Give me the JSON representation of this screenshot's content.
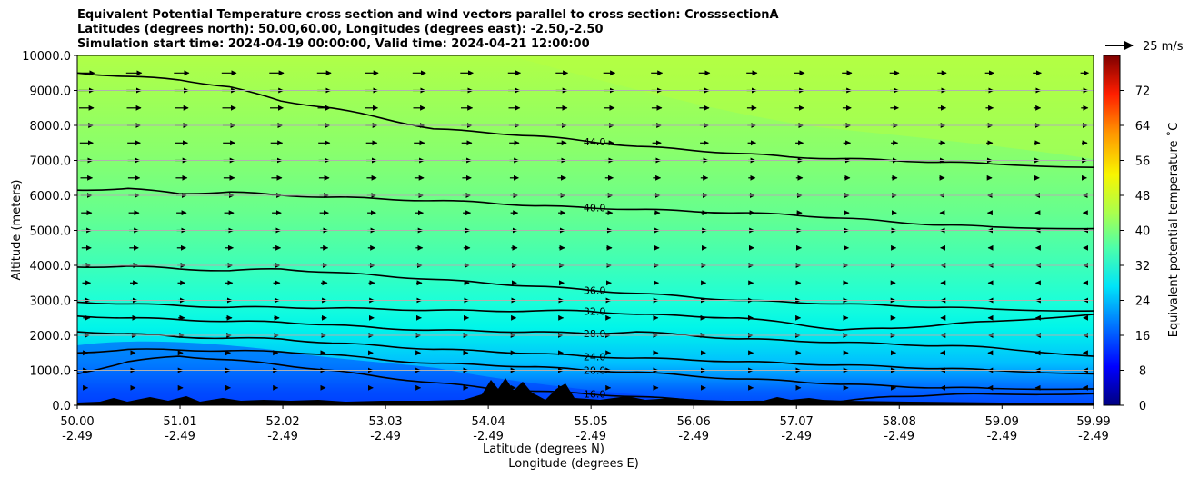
{
  "titles": [
    "Equivalent Potential Temperature cross section and wind vectors parallel to cross section: CrosssectionA",
    "Latitudes (degrees north): 50.00,60.00, Longitudes (degrees east): -2.50,-2.50",
    "Simulation start time: 2024-04-19 00:00:00, Valid time: 2024-04-21 12:00:00"
  ],
  "chart_data": {
    "type": "heatmap",
    "ylabel": "Altitude (meters)",
    "xlabel_lines": [
      "Latitude (degrees N)",
      "Longitude (degrees E)"
    ],
    "ylim": [
      0,
      10000
    ],
    "y_ticks": [
      "0.0",
      "1000.0",
      "2000.0",
      "3000.0",
      "4000.0",
      "5000.0",
      "6000.0",
      "7000.0",
      "8000.0",
      "9000.0",
      "10000.0"
    ],
    "y_tick_values": [
      0,
      1000,
      2000,
      3000,
      4000,
      5000,
      6000,
      7000,
      8000,
      9000,
      10000
    ],
    "x_lat_ticks": [
      "50.00",
      "51.01",
      "52.02",
      "53.03",
      "54.04",
      "55.05",
      "56.06",
      "57.07",
      "58.08",
      "59.09",
      "59.99"
    ],
    "x_lon_ticks": [
      "-2.49",
      "-2.49",
      "-2.49",
      "-2.49",
      "-2.49",
      "-2.49",
      "-2.49",
      "-2.49",
      "-2.49",
      "-2.49",
      "-2.49"
    ],
    "x_tick_values": [
      50.0,
      51.01,
      52.02,
      53.03,
      54.04,
      55.05,
      56.06,
      57.07,
      58.08,
      59.09,
      59.99
    ],
    "xlim": [
      50.0,
      59.99
    ],
    "grid": "horizontal",
    "colorbar": {
      "label": "Equivalent potential temperature ˚C",
      "min": 0,
      "max": 80,
      "ticks": [
        "0",
        "8",
        "16",
        "24",
        "32",
        "40",
        "48",
        "56",
        "64",
        "72"
      ],
      "tick_values": [
        0,
        8,
        16,
        24,
        32,
        40,
        48,
        56,
        64,
        72
      ]
    },
    "quiver_key": "25 m/s",
    "contours": [
      {
        "level": 16.0,
        "label": "16.0",
        "lat": [
          50.0,
          50.5,
          51.0,
          51.5,
          52.0,
          52.5,
          53.0,
          53.5,
          54.0,
          54.5,
          55.0,
          55.5,
          56.0,
          56.5,
          57.0,
          57.5,
          58.0,
          58.5,
          59.0,
          59.99
        ],
        "alt": [
          900,
          1250,
          1400,
          1300,
          1150,
          1000,
          800,
          650,
          500,
          400,
          330,
          250,
          150,
          100,
          80,
          110,
          250,
          300,
          320,
          330
        ]
      },
      {
        "level": 20.0,
        "label": "20.0",
        "lat": [
          50.0,
          50.5,
          51.0,
          51.5,
          52.0,
          52.5,
          53.0,
          53.5,
          54.0,
          54.5,
          55.0,
          55.5,
          56.0,
          56.5,
          57.0,
          57.5,
          58.0,
          58.5,
          59.0,
          59.99
        ],
        "alt": [
          1500,
          1600,
          1580,
          1560,
          1530,
          1450,
          1300,
          1200,
          1150,
          1100,
          1000,
          950,
          850,
          750,
          700,
          600,
          550,
          500,
          480,
          470
        ]
      },
      {
        "level": 24.0,
        "label": "24.0",
        "lat": [
          50.0,
          50.5,
          51.0,
          51.5,
          52.0,
          52.5,
          53.0,
          53.5,
          54.0,
          54.5,
          55.0,
          55.5,
          56.0,
          56.5,
          57.0,
          57.5,
          58.0,
          58.5,
          59.0,
          59.99
        ],
        "alt": [
          2100,
          2050,
          1950,
          1920,
          1900,
          1780,
          1700,
          1600,
          1550,
          1480,
          1400,
          1350,
          1300,
          1250,
          1200,
          1150,
          1100,
          1050,
          1000,
          900
        ]
      },
      {
        "level": 28.0,
        "label": "28.0",
        "lat": [
          50.0,
          50.5,
          51.0,
          51.5,
          52.0,
          52.5,
          53.0,
          53.5,
          54.0,
          54.5,
          55.0,
          55.5,
          56.0,
          56.5,
          57.0,
          57.5,
          58.0,
          58.5,
          59.0,
          59.99
        ],
        "alt": [
          2550,
          2500,
          2450,
          2400,
          2380,
          2300,
          2200,
          2150,
          2120,
          2100,
          2050,
          2100,
          2000,
          1900,
          1850,
          1800,
          1750,
          1700,
          1650,
          1400
        ]
      },
      {
        "level": 32.0,
        "label": "32.0",
        "lat": [
          50.0,
          50.5,
          51.0,
          51.5,
          52.0,
          52.5,
          53.0,
          53.5,
          54.0,
          54.5,
          55.0,
          55.5,
          56.0,
          56.5,
          57.0,
          57.5,
          58.0,
          58.5,
          59.0,
          59.99
        ],
        "alt": [
          2950,
          2900,
          2850,
          2800,
          2800,
          2780,
          2750,
          2720,
          2700,
          2700,
          2700,
          2600,
          2550,
          2500,
          2350,
          2150,
          2200,
          2300,
          2400,
          2600
        ]
      },
      {
        "level": 36.0,
        "label": "36.0",
        "lat": [
          50.0,
          50.5,
          51.0,
          51.5,
          52.0,
          52.5,
          53.0,
          53.5,
          54.0,
          54.5,
          55.0,
          55.5,
          56.0,
          56.5,
          57.0,
          57.5,
          58.0,
          58.5,
          59.0,
          59.99
        ],
        "alt": [
          3950,
          3980,
          3900,
          3850,
          3900,
          3800,
          3700,
          3600,
          3500,
          3400,
          3300,
          3200,
          3100,
          3000,
          2950,
          2900,
          2850,
          2800,
          2750,
          2700
        ]
      },
      {
        "level": 40.0,
        "label": "40.0",
        "lat": [
          50.0,
          50.5,
          51.0,
          51.5,
          52.0,
          52.5,
          53.0,
          53.5,
          54.0,
          54.5,
          55.0,
          55.5,
          56.0,
          56.5,
          57.0,
          57.5,
          58.0,
          58.5,
          59.0,
          59.99
        ],
        "alt": [
          6150,
          6200,
          6050,
          6100,
          6000,
          5950,
          5900,
          5850,
          5800,
          5700,
          5650,
          5600,
          5550,
          5500,
          5450,
          5350,
          5250,
          5150,
          5100,
          5050
        ]
      },
      {
        "level": 44.0,
        "label": "44.0",
        "lat": [
          50.0,
          50.5,
          51.0,
          51.5,
          52.0,
          52.5,
          53.0,
          53.5,
          54.0,
          54.5,
          55.0,
          55.5,
          56.0,
          56.5,
          57.0,
          57.5,
          58.0,
          58.5,
          59.0,
          59.99
        ],
        "alt": [
          9500,
          9400,
          9300,
          9100,
          8700,
          8500,
          8200,
          7900,
          7800,
          7700,
          7550,
          7400,
          7300,
          7200,
          7100,
          7050,
          7000,
          6950,
          6900,
          6800
        ]
      }
    ]
  }
}
